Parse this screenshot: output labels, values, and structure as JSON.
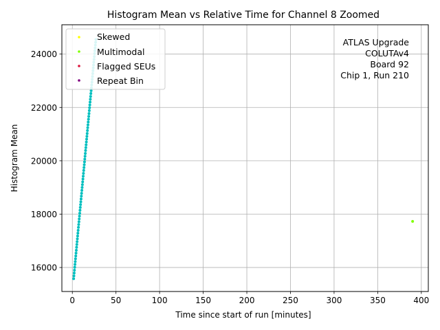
{
  "chart_data": {
    "type": "scatter",
    "title": "Histogram Mean vs Relative Time for Channel 8 Zoomed",
    "xlabel": "Time since start of run [minutes]",
    "ylabel": "Histogram Mean",
    "xlim": [
      -12,
      408
    ],
    "ylim": [
      15100,
      25100
    ],
    "xticks": [
      0,
      50,
      100,
      150,
      200,
      250,
      300,
      350,
      400
    ],
    "yticks": [
      16000,
      18000,
      20000,
      22000,
      24000
    ],
    "grid": true,
    "legend_position": "top-left",
    "annotation": [
      "ATLAS Upgrade",
      "COLUTAv4",
      "Board 92",
      "Chip 1, Run 210"
    ],
    "main_series": {
      "color": "#00BFBF",
      "x_start": 1.5,
      "x_end": 27,
      "y_start": 15580,
      "y_end": 24550,
      "count": 85
    },
    "series": [
      {
        "name": "Skewed",
        "color": "#FFFF00",
        "points": []
      },
      {
        "name": "Multimodal",
        "color": "#7FFF00",
        "points": [
          [
            390,
            17730
          ]
        ]
      },
      {
        "name": "Flagged SEUs",
        "color": "#DC143C",
        "points": []
      },
      {
        "name": "Repeat Bin",
        "color": "#800080",
        "points": []
      }
    ]
  }
}
